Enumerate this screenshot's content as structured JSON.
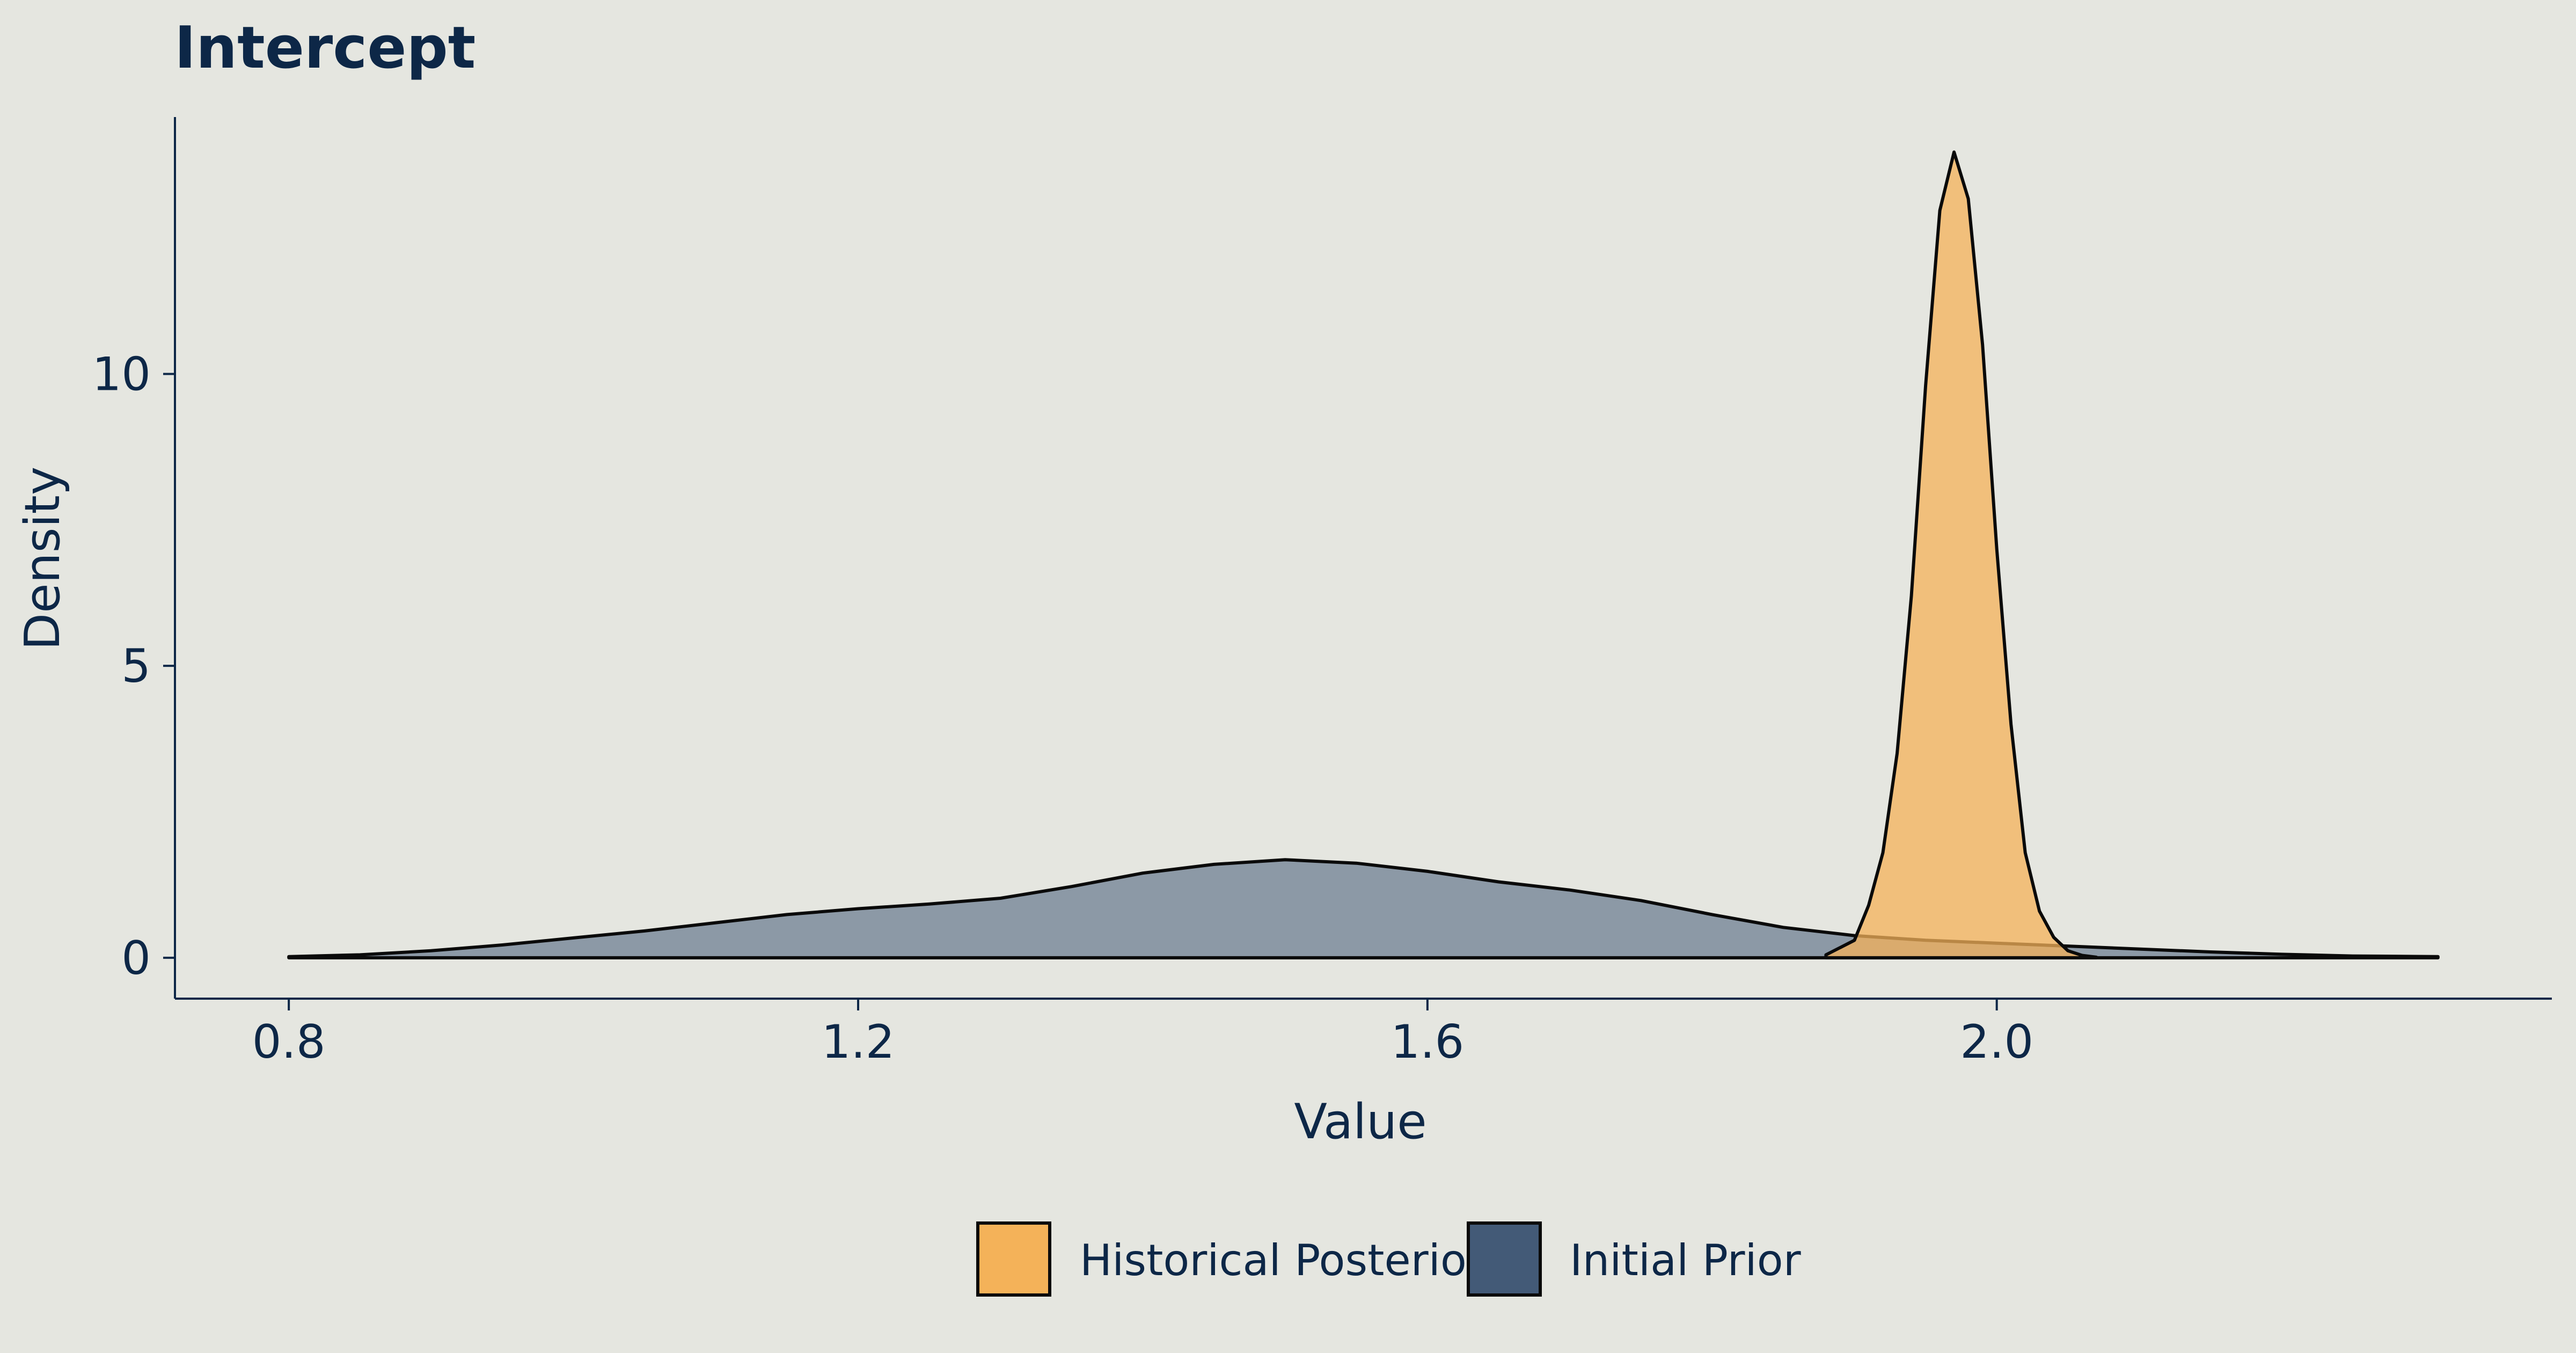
{
  "chart_data": {
    "type": "area",
    "title": "Intercept",
    "xlabel": "Value",
    "ylabel": "Density",
    "xlim": [
      0.72,
      2.39
    ],
    "ylim": [
      -0.7,
      14.4
    ],
    "xticks": [
      0.8,
      1.2,
      1.6,
      2.0
    ],
    "xtick_labels": [
      "0.8",
      "1.2",
      "1.6",
      "2.0"
    ],
    "yticks": [
      0,
      5,
      10
    ],
    "ytick_labels": [
      "0",
      "5",
      "10"
    ],
    "grid": false,
    "legend_position": "bottom",
    "series": [
      {
        "name": "Initial Prior",
        "color": "#435a77",
        "opacity": 0.55,
        "x": [
          0.8,
          0.85,
          0.9,
          0.95,
          1.0,
          1.05,
          1.1,
          1.15,
          1.2,
          1.25,
          1.3,
          1.35,
          1.4,
          1.45,
          1.5,
          1.55,
          1.6,
          1.65,
          1.7,
          1.75,
          1.8,
          1.85,
          1.9,
          1.95,
          2.0,
          2.05,
          2.1,
          2.15,
          2.2,
          2.25,
          2.31
        ],
        "values": [
          0.02,
          0.05,
          0.12,
          0.22,
          0.34,
          0.46,
          0.6,
          0.74,
          0.84,
          0.92,
          1.02,
          1.22,
          1.45,
          1.6,
          1.68,
          1.62,
          1.48,
          1.3,
          1.16,
          0.98,
          0.74,
          0.52,
          0.38,
          0.3,
          0.25,
          0.2,
          0.15,
          0.1,
          0.06,
          0.03,
          0.02
        ]
      },
      {
        "name": "Historical Posterior",
        "color": "#f4b259",
        "opacity": 0.75,
        "x": [
          1.88,
          1.9,
          1.91,
          1.92,
          1.93,
          1.94,
          1.95,
          1.96,
          1.97,
          1.98,
          1.99,
          2.0,
          2.01,
          2.02,
          2.03,
          2.04,
          2.05,
          2.06,
          2.07
        ],
        "values": [
          0.05,
          0.3,
          0.9,
          1.8,
          3.5,
          6.2,
          9.8,
          12.8,
          13.8,
          13.0,
          10.5,
          7.0,
          4.0,
          1.8,
          0.8,
          0.35,
          0.12,
          0.04,
          0.01
        ]
      }
    ]
  },
  "legend": {
    "items": [
      {
        "label": "Historical Posterior",
        "color": "#f4b259"
      },
      {
        "label": "Initial Prior",
        "color": "#435a77"
      }
    ]
  }
}
